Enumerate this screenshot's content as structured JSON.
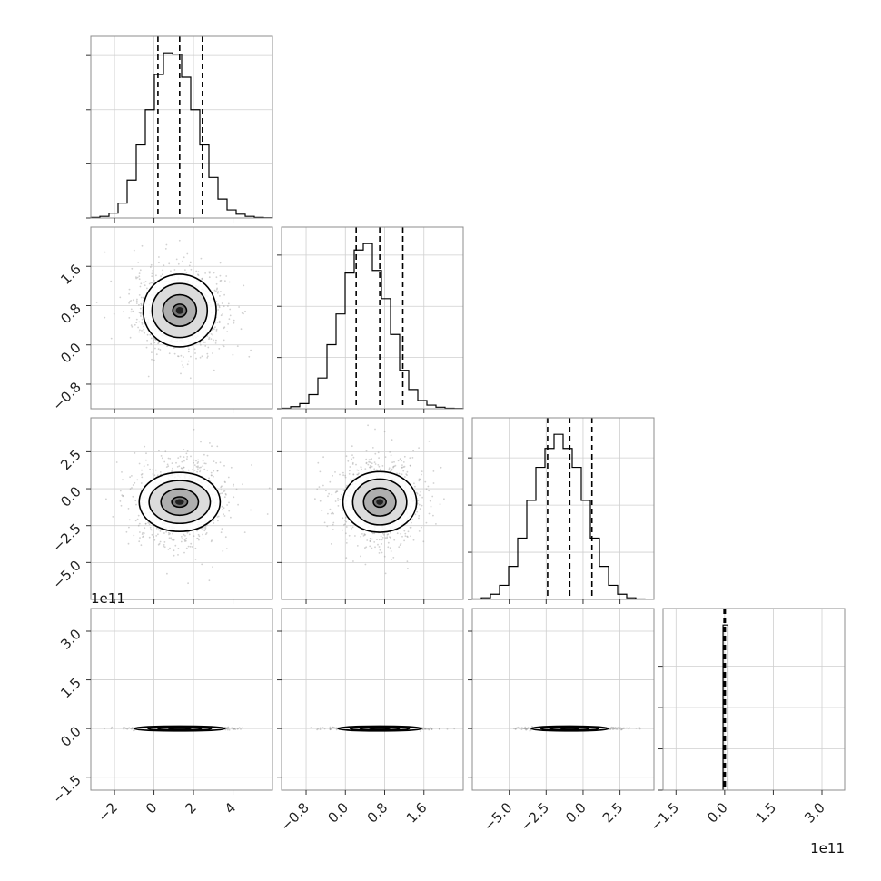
{
  "chart_data": {
    "type": "corner",
    "variables": [
      {
        "range": [
          -3.2,
          6.0
        ],
        "ticks": [
          -2,
          0,
          2,
          4
        ],
        "tick_labels": [
          "−2",
          "0",
          "2",
          "4"
        ],
        "quantiles": [
          0.2,
          1.3,
          2.45
        ],
        "hist_bins": [
          -3.2,
          -2.74,
          -2.28,
          -1.82,
          -1.36,
          -0.9,
          -0.44,
          0.02,
          0.48,
          0.94,
          1.4,
          1.86,
          2.32,
          2.78,
          3.24,
          3.7,
          4.16,
          4.62,
          5.08,
          5.54,
          6.0
        ],
        "hist_counts": [
          2,
          6,
          18,
          55,
          140,
          270,
          400,
          530,
          610,
          605,
          520,
          400,
          270,
          150,
          70,
          30,
          14,
          6,
          2,
          1
        ],
        "hist_ticks": [
          0,
          200,
          400,
          600
        ]
      },
      {
        "range": [
          -1.3,
          2.4
        ],
        "ticks": [
          -0.8,
          0.0,
          0.8,
          1.6
        ],
        "tick_labels": [
          "−0.8",
          "0.0",
          "0.8",
          "1.6"
        ],
        "quantiles": [
          0.22,
          0.7,
          1.17
        ],
        "hist_bins": [
          -1.3,
          -1.115,
          -0.93,
          -0.745,
          -0.56,
          -0.375,
          -0.19,
          -0.005,
          0.18,
          0.365,
          0.55,
          0.735,
          0.92,
          1.105,
          1.29,
          1.475,
          1.66,
          1.845,
          2.03,
          2.215,
          2.4
        ],
        "hist_counts": [
          2,
          8,
          20,
          55,
          120,
          250,
          370,
          530,
          620,
          645,
          540,
          430,
          290,
          150,
          75,
          32,
          14,
          6,
          2,
          1
        ],
        "hist_ticks": [
          0,
          200,
          400,
          600
        ]
      },
      {
        "range": [
          -7.5,
          4.8
        ],
        "ticks": [
          -5.0,
          -2.5,
          0.0,
          2.5
        ],
        "tick_labels": [
          "−5.0",
          "−2.5",
          "0.0",
          "2.5"
        ],
        "y_ticks": [
          -5.0,
          -2.5,
          0.0,
          2.5
        ],
        "y_tick_labels": [
          "−5.0",
          "−2.5",
          "0.0",
          "2.5"
        ],
        "quantiles": [
          -2.4,
          -0.9,
          0.6
        ],
        "hist_bins": [
          -7.5,
          -6.885,
          -6.27,
          -5.655,
          -5.04,
          -4.425,
          -3.81,
          -3.195,
          -2.58,
          -1.965,
          -1.35,
          -0.735,
          -0.12,
          0.495,
          1.11,
          1.725,
          2.34,
          2.955,
          3.57,
          4.185,
          4.8
        ],
        "hist_counts": [
          2,
          7,
          22,
          60,
          140,
          260,
          420,
          560,
          640,
          700,
          640,
          560,
          420,
          260,
          140,
          60,
          22,
          7,
          2,
          1
        ],
        "hist_ticks": [
          0,
          200,
          400,
          600
        ]
      },
      {
        "range": [
          -1.9,
          3.7
        ],
        "ticks": [
          -1.5,
          0.0,
          1.5,
          3.0
        ],
        "tick_labels": [
          "−1.5",
          "0.0",
          "1.5",
          "3.0"
        ],
        "scale_label": "1e11",
        "quantiles": [
          -0.02,
          0.0,
          0.02
        ],
        "hist_bins": [
          -0.05,
          0.1
        ],
        "hist_counts": [
          3999
        ],
        "hist_ticks": [
          0,
          1000,
          2000,
          3000
        ]
      }
    ],
    "pairs": [
      {
        "row": 1,
        "col": 0,
        "center": [
          1.3,
          0.7
        ],
        "radii": [
          [
            0.35,
            0.13
          ],
          [
            0.85,
            0.32
          ],
          [
            1.4,
            0.55
          ],
          [
            1.85,
            0.74
          ]
        ],
        "sigma": [
          1.2,
          0.45
        ]
      },
      {
        "row": 2,
        "col": 0,
        "center": [
          1.3,
          -0.9
        ],
        "radii": [
          [
            0.4,
            0.35
          ],
          [
            0.95,
            0.9
          ],
          [
            1.55,
            1.45
          ],
          [
            2.05,
            2.0
          ]
        ],
        "sigma": [
          1.2,
          1.5
        ]
      },
      {
        "row": 2,
        "col": 1,
        "center": [
          0.7,
          -0.9
        ],
        "radii": [
          [
            0.13,
            0.35
          ],
          [
            0.33,
            0.95
          ],
          [
            0.55,
            1.55
          ],
          [
            0.75,
            2.05
          ]
        ],
        "sigma": [
          0.45,
          1.5
        ]
      },
      {
        "row": 3,
        "col": 0,
        "center": [
          1.3,
          0.0
        ],
        "radii": [
          [
            0.55,
            0.02
          ],
          [
            1.1,
            0.045
          ],
          [
            1.6,
            0.06
          ],
          [
            2.3,
            0.075
          ]
        ],
        "sigma": [
          1.2,
          0.02
        ]
      },
      {
        "row": 3,
        "col": 1,
        "center": [
          0.7,
          0.0
        ],
        "radii": [
          [
            0.2,
            0.02
          ],
          [
            0.4,
            0.045
          ],
          [
            0.6,
            0.06
          ],
          [
            0.85,
            0.075
          ]
        ],
        "sigma": [
          0.45,
          0.02
        ]
      },
      {
        "row": 3,
        "col": 2,
        "center": [
          -0.9,
          0.0
        ],
        "radii": [
          [
            0.6,
            0.02
          ],
          [
            1.3,
            0.045
          ],
          [
            1.95,
            0.06
          ],
          [
            2.6,
            0.075
          ]
        ],
        "sigma": [
          1.5,
          0.02
        ]
      }
    ],
    "colors": {
      "frame": "#8c8c8c",
      "grid": "#cfcfcf",
      "hist": "#000000",
      "quantile": "#000000",
      "points": "#9a9a9a",
      "contour": "#000000"
    }
  }
}
